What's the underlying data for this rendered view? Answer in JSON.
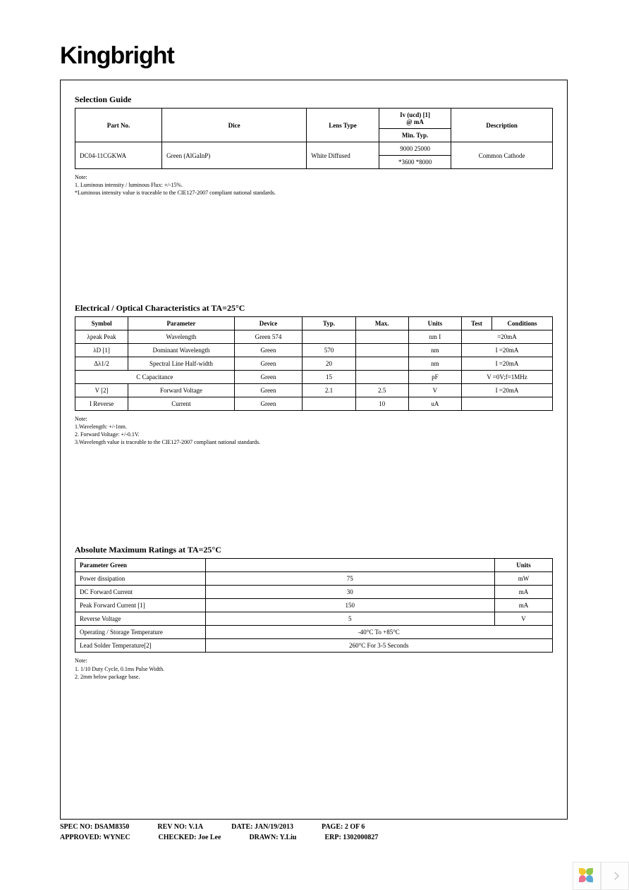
{
  "brand": "Kingbright",
  "selection_guide": {
    "title": "Selection Guide",
    "headers": {
      "part_no": "Part No.",
      "dice": "Dice",
      "lens_type": "Lens Type",
      "iv_header": "Iv (ucd) [1]",
      "iv_sub": "@ mA",
      "min": "Min.",
      "typ": "Typ.",
      "description": "Description"
    },
    "row": {
      "part_no": "DC04-11CGKWA",
      "dice": "Green (AlGaInP)",
      "lens_type": "White Diffused",
      "iv1": "9000 25000",
      "iv2": "*3600 *8000",
      "description": "Common Cathode"
    },
    "notes": {
      "h": "Note:",
      "n1": "1. Luminous intensity / luminous Flux: +/-15%.",
      "n2": "*Luminous intensity value is traceable to the CIE127-2007 compliant national standards."
    }
  },
  "electrical": {
    "title": "Electrical / Optical Characteristics at TA=25°C",
    "headers": {
      "symbol": "Symbol",
      "parameter": "Parameter",
      "device": "Device",
      "typ": "Typ.",
      "max": "Max.",
      "units": "Units",
      "test": "Test",
      "conditions": "Conditions"
    },
    "rows": [
      {
        "symbol": "λpeak Peak",
        "param": "Wavelength",
        "device": "Green 574",
        "typ": "",
        "max": "",
        "units": "nm I",
        "cond": "=20mA"
      },
      {
        "symbol": "λD [1]",
        "param": "Dominant Wavelength",
        "device": "Green",
        "typ": "570",
        "max": "",
        "units": "nm",
        "cond": "I  =20mA"
      },
      {
        "symbol": "Δλ1/2",
        "param": "Spectral Line  Half-width",
        "device": "Green",
        "typ": "20",
        "max": "",
        "units": "nm",
        "cond": "I  =20mA"
      },
      {
        "symbol": "C Capacitance",
        "param": "",
        "device": "Green",
        "typ": "15",
        "max": "",
        "units": "pF",
        "cond": "V  =0V;f=1MHz"
      },
      {
        "symbol": "V   [2]",
        "param": "Forward Voltage",
        "device": "Green",
        "typ": "2.1",
        "max": "2.5",
        "units": "V",
        "cond": "I  =20mA"
      },
      {
        "symbol": "I   Reverse",
        "param": "Current",
        "device": "Green",
        "typ": "",
        "max": "10",
        "units": "uA",
        "cond": ""
      }
    ],
    "notes": {
      "h": "Note:",
      "n1": "1.Wavelength: +/-1nm.",
      "n2": "2. Forward Voltage: +/-0.1V.",
      "n3": "3.Wavelength value is traceable to the CIE127-2007 compliant national standards."
    }
  },
  "absmax": {
    "title": "Absolute Maximum Ratings at TA=25°C",
    "headers": {
      "parameter": "Parameter Green",
      "units": "Units"
    },
    "rows": [
      {
        "p": "Power dissipation",
        "v": "75",
        "u": "mW"
      },
      {
        "p": "DC Forward Current",
        "v": "30",
        "u": "mA"
      },
      {
        "p": "Peak Forward Current [1]",
        "v": "150",
        "u": "mA"
      },
      {
        "p": "Reverse Voltage",
        "v": "5",
        "u": "V"
      },
      {
        "p": "Operating / Storage Temperature",
        "v": "-40°C To +85°C",
        "u": ""
      },
      {
        "p": "Lead Solder Temperature[2]",
        "v": "260°C For 3-5 Seconds",
        "u": ""
      }
    ],
    "notes": {
      "h": "Note:",
      "n1": "1. 1/10 Duty Cycle, 0.1ms Pulse Width.",
      "n2": "2. 2mm below package base."
    }
  },
  "footer": {
    "r1": {
      "spec": "SPEC NO: DSAM8350",
      "rev": "REV NO: V.1A",
      "date": "DATE: JAN/19/2013",
      "page": "PAGE:  2  OF  6"
    },
    "r2": {
      "approved": "APPROVED: WYNEC",
      "checked": "CHECKED: Joe Lee",
      "drawn": "DRAWN: Y.Liu",
      "erp": "ERP:  1302000827"
    }
  },
  "colors": {
    "petal_yellow": "#f4c630",
    "petal_pink": "#e9718f",
    "petal_green": "#8fc74a",
    "petal_blue": "#5aa8d6"
  }
}
